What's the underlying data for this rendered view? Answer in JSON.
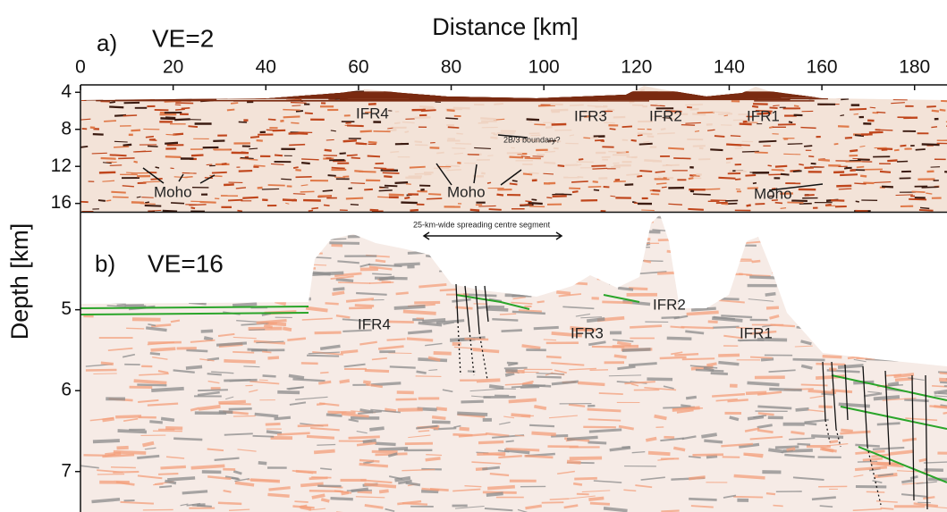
{
  "chart_data": [
    {
      "type": "image",
      "panel_label": "a)",
      "subtitle": "VE=2",
      "title": "Distance [km]",
      "ylabel": "Depth [km]",
      "xlim": [
        0,
        187
      ],
      "xticks": [
        0,
        20,
        40,
        60,
        80,
        100,
        120,
        140,
        160,
        180
      ],
      "ylim": [
        3.2,
        16.9
      ],
      "yticks": [
        4,
        8,
        12,
        16
      ],
      "annotations": [
        "IFR4",
        "IFR3",
        "IFR2",
        "IFR1",
        "2B/3 boundary?",
        "Moho",
        "Moho",
        "Moho"
      ]
    },
    {
      "type": "image",
      "panel_label": "b)",
      "subtitle": "VE=16",
      "xlim": [
        0,
        187
      ],
      "ylim": [
        3.8,
        7.5
      ],
      "yticks": [
        5,
        6,
        7
      ],
      "annotations": [
        "25-km-wide spreading centre segment",
        "IFR4",
        "IFR3",
        "IFR2",
        "IFR1"
      ]
    }
  ]
}
